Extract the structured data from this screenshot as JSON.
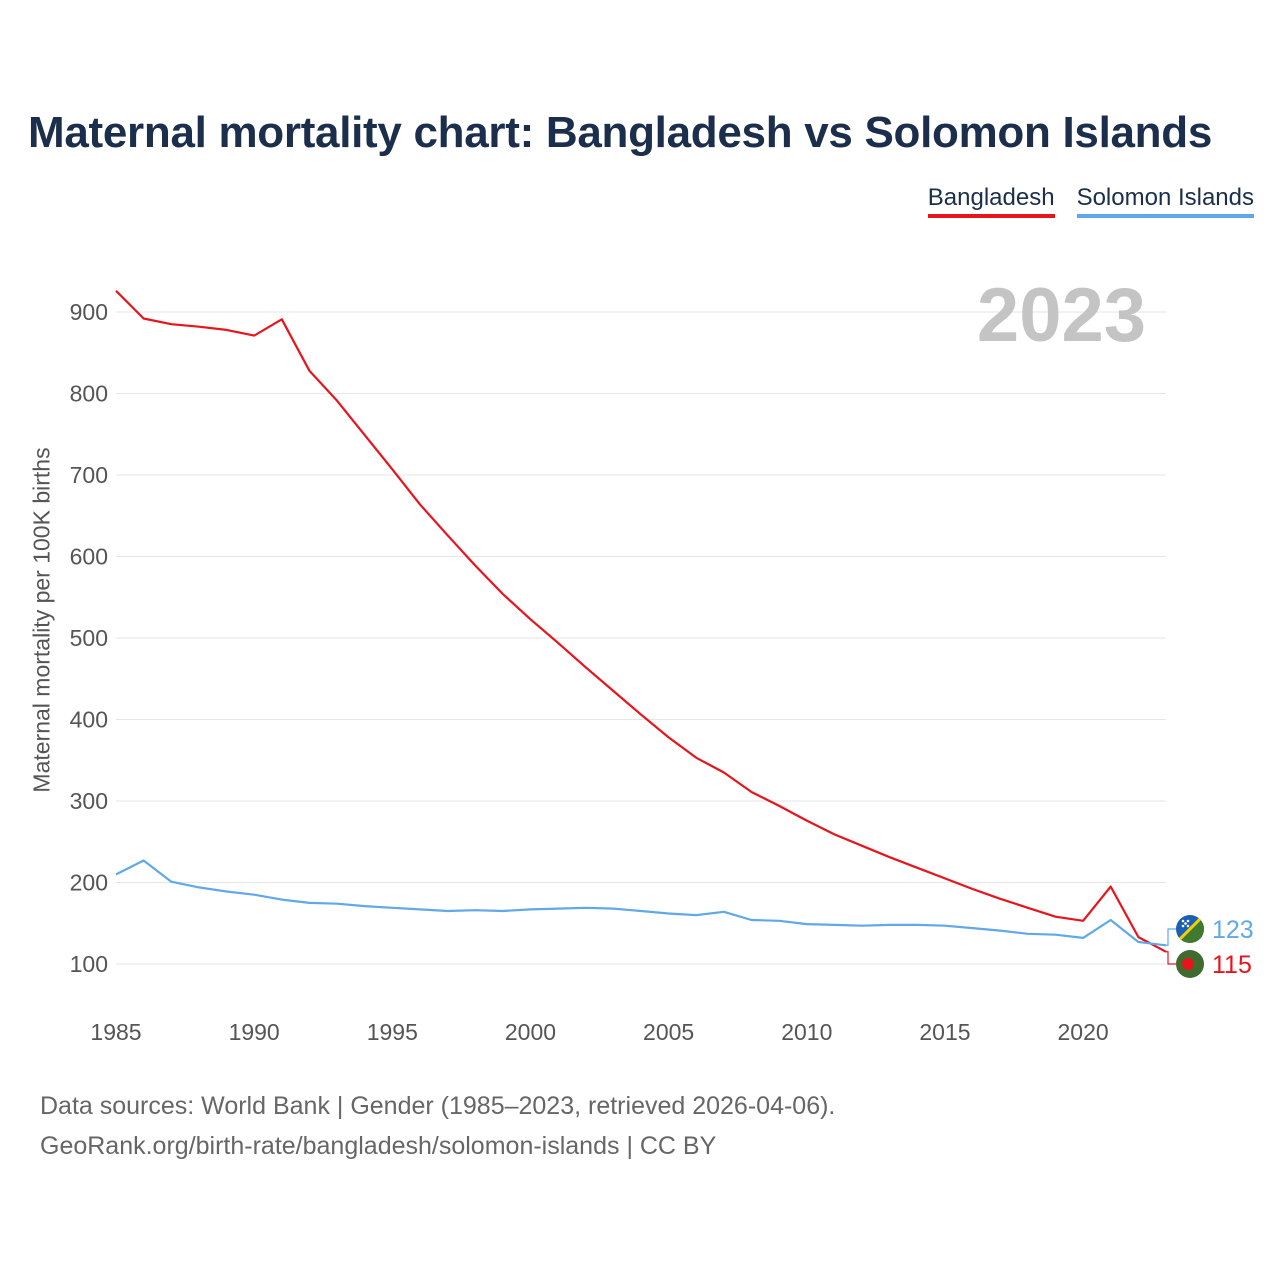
{
  "title": "Maternal mortality chart: Bangladesh vs Solomon Islands",
  "legend": [
    {
      "name": "Bangladesh",
      "color": "#e8141c"
    },
    {
      "name": "Solomon Islands",
      "color": "#61a8e8"
    }
  ],
  "year_display": "2023",
  "source": {
    "line1": "Data sources: World Bank | Gender (1985–2023, retrieved 2026-04-06).",
    "line2": "GeoRank.org/birth-rate/bangladesh/solomon-islands | CC BY"
  },
  "chart_data": {
    "type": "line",
    "title": "Maternal mortality chart: Bangladesh vs Solomon Islands",
    "xlabel": "",
    "ylabel": "Maternal mortality per 100K births",
    "xlim": [
      1985,
      2023
    ],
    "ylim": [
      50,
      950
    ],
    "yticks": [
      100,
      200,
      300,
      400,
      500,
      600,
      700,
      800,
      900
    ],
    "xticks": [
      1985,
      1990,
      1995,
      2000,
      2005,
      2010,
      2015,
      2020
    ],
    "x": [
      1985,
      1986,
      1987,
      1988,
      1989,
      1990,
      1991,
      1992,
      1993,
      1994,
      1995,
      1996,
      1997,
      1998,
      1999,
      2000,
      2001,
      2002,
      2003,
      2004,
      2005,
      2006,
      2007,
      2008,
      2009,
      2010,
      2011,
      2012,
      2013,
      2014,
      2015,
      2016,
      2017,
      2018,
      2019,
      2020,
      2021,
      2022,
      2023
    ],
    "series": [
      {
        "name": "Bangladesh",
        "color": "#e8141c",
        "end_label": "115",
        "values": [
          926,
          892,
          885,
          882,
          878,
          871,
          891,
          828,
          791,
          749,
          707,
          664,
          626,
          589,
          554,
          523,
          494,
          464,
          435,
          406,
          378,
          353,
          335,
          311,
          294,
          276,
          259,
          245,
          231,
          218,
          205,
          192,
          180,
          169,
          158,
          153,
          195,
          133,
          115
        ]
      },
      {
        "name": "Solomon Islands",
        "color": "#61a8e8",
        "end_label": "123",
        "values": [
          210,
          227,
          201,
          194,
          189,
          185,
          179,
          175,
          174,
          171,
          169,
          167,
          165,
          166,
          165,
          167,
          168,
          169,
          168,
          165,
          162,
          160,
          164,
          154,
          153,
          149,
          148,
          147,
          148,
          148,
          147,
          144,
          141,
          137,
          136,
          132,
          154,
          127,
          123
        ]
      }
    ]
  }
}
